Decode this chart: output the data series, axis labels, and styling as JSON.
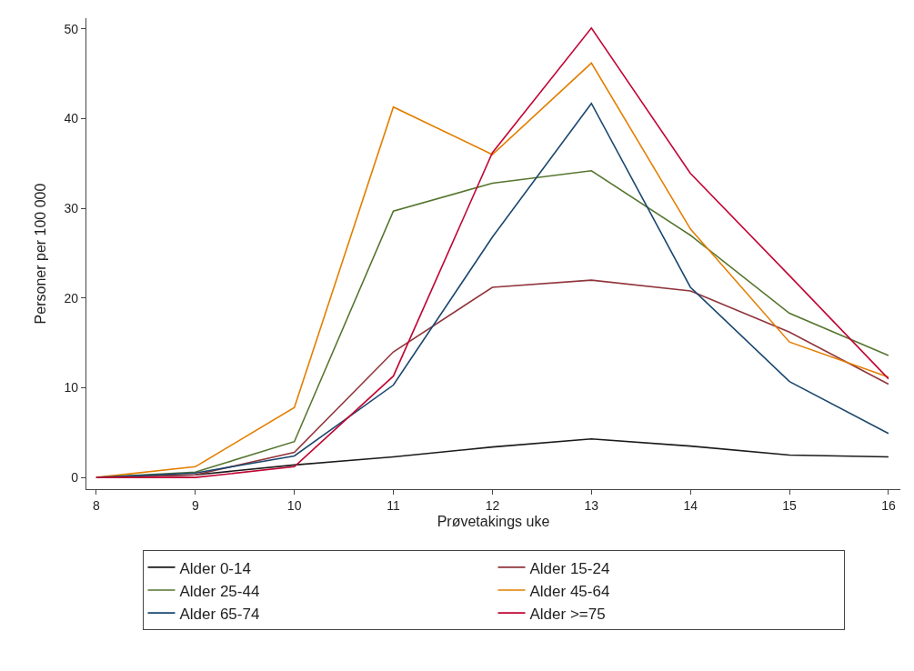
{
  "chart_data": {
    "type": "line",
    "xlabel": "Prøvetakings uke",
    "ylabel": "Personer per 100 000",
    "x": [
      8,
      9,
      10,
      11,
      12,
      13,
      14,
      15,
      16
    ],
    "series": [
      {
        "name": "Alder 0-14",
        "color": "#1a1a1a",
        "values": [
          0,
          0.3,
          1.4,
          2.3,
          3.4,
          4.3,
          3.5,
          2.5,
          2.3
        ]
      },
      {
        "name": "Alder 15-24",
        "color": "#90353b",
        "values": [
          0,
          0.3,
          2.8,
          14,
          21.2,
          22,
          20.8,
          16.2,
          10.4
        ]
      },
      {
        "name": "Alder 25-44",
        "color": "#55752f",
        "values": [
          0,
          0.6,
          4.0,
          29.7,
          32.8,
          34.2,
          27,
          18.3,
          13.6
        ]
      },
      {
        "name": "Alder 45-64",
        "color": "#e37e00",
        "values": [
          0,
          1.2,
          7.8,
          41.3,
          36,
          46.2,
          27.7,
          15.1,
          11.2
        ]
      },
      {
        "name": "Alder 65-74",
        "color": "#1a476f",
        "values": [
          0,
          0.5,
          2.4,
          10.3,
          26.8,
          41.7,
          21.2,
          10.7,
          4.9
        ]
      },
      {
        "name": "Alder >=75",
        "color": "#c10534",
        "values": [
          0,
          0,
          1.2,
          11.3,
          36.2,
          50.1,
          33.9,
          22.5,
          11
        ]
      }
    ],
    "xlim": [
      7.9,
      16.12
    ],
    "xticks": [
      8,
      9,
      10,
      11,
      12,
      13,
      14,
      15,
      16
    ],
    "ylim": [
      -1.3,
      51.2
    ],
    "yticks": [
      0,
      10,
      20,
      30,
      40,
      50
    ],
    "legend": "bottom",
    "marker": "none",
    "line_style": "solid"
  }
}
